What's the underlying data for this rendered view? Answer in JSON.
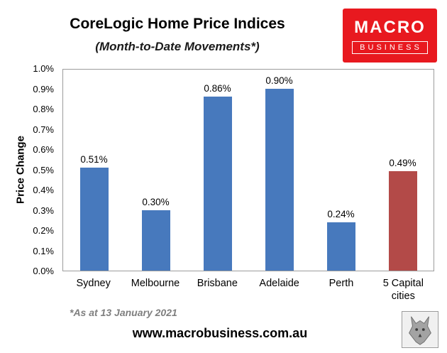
{
  "header": {
    "title": "CoreLogic Home Price Indices",
    "subtitle": "(Month-to-Date Movements*)"
  },
  "logo": {
    "line1": "MACRO",
    "line2": "BUSINESS",
    "bg_color": "#e8191f"
  },
  "chart_data": {
    "type": "bar",
    "categories": [
      "Sydney",
      "Melbourne",
      "Brisbane",
      "Adelaide",
      "Perth",
      "5 Capital cities"
    ],
    "values": [
      0.51,
      0.3,
      0.86,
      0.9,
      0.24,
      0.49
    ],
    "data_labels": [
      "0.51%",
      "0.30%",
      "0.86%",
      "0.90%",
      "0.24%",
      "0.49%"
    ],
    "bar_colors": [
      "#4779bd",
      "#4779bd",
      "#4779bd",
      "#4779bd",
      "#4779bd",
      "#b34a48"
    ],
    "title": "CoreLogic Home Price Indices",
    "subtitle": "(Month-to-Date Movements*)",
    "xlabel": "",
    "ylabel": "Price Change",
    "ylim": [
      0,
      1.0
    ],
    "ytick_labels": [
      "0.0%",
      "0.1%",
      "0.2%",
      "0.3%",
      "0.4%",
      "0.5%",
      "0.6%",
      "0.7%",
      "0.8%",
      "0.9%",
      "1.0%"
    ],
    "grid": false,
    "legend": "none"
  },
  "footer": {
    "footnote": "*As at 13 January 2021",
    "website": "www.macrobusiness.com.au",
    "wolf_logo": "wolf-logo"
  }
}
